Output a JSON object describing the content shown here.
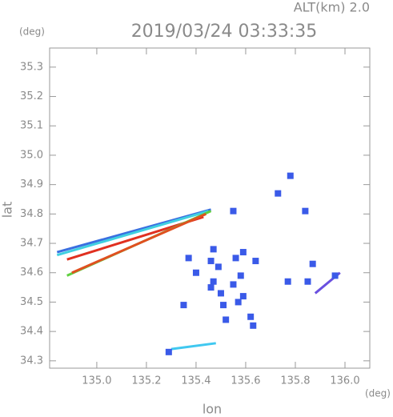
{
  "chart_data": {
    "type": "scatter",
    "title": "2019/03/24 03:33:35",
    "subtitle": "ALT(km) 2.0",
    "y_unit": "(deg)",
    "x_unit": "(deg)",
    "x_label": "lon",
    "y_label": "lat",
    "xlim": [
      134.81,
      136.1
    ],
    "ylim": [
      34.275,
      35.365
    ],
    "xticks": [
      {
        "value": 135,
        "label": "135.0"
      },
      135.2,
      135.4,
      135.6,
      135.8,
      {
        "value": 136,
        "label": "136.0"
      }
    ],
    "yticks": [
      34.3,
      34.4,
      34.5,
      34.6,
      34.7,
      34.8,
      34.9,
      {
        "value": 35,
        "label": "35.0"
      },
      35.1,
      35.2,
      35.3
    ],
    "series": [
      {
        "color": "#3a6fe0",
        "line": true,
        "x": [
          134.84,
          135.46
        ],
        "values": [
          34.67,
          34.815
        ]
      },
      {
        "color": "#40d0e0",
        "line": true,
        "x": [
          134.84,
          135.45
        ],
        "values": [
          34.66,
          34.81
        ]
      },
      {
        "color": "#e03020",
        "line": true,
        "x": [
          134.88,
          135.43
        ],
        "values": [
          34.645,
          34.79
        ]
      },
      {
        "color": "#60d040",
        "line": true,
        "x": [
          134.88,
          135.46
        ],
        "values": [
          34.59,
          34.81
        ]
      },
      {
        "color": "#e05020",
        "line": true,
        "x": [
          134.9,
          135.44
        ],
        "values": [
          34.6,
          34.8
        ]
      },
      {
        "color": "#40c8f0",
        "line": true,
        "x": [
          135.3,
          135.48
        ],
        "values": [
          34.34,
          34.36
        ]
      },
      {
        "color": "#6a50e0",
        "line": true,
        "x": [
          135.88,
          135.98
        ],
        "values": [
          34.53,
          34.6
        ]
      },
      {
        "color": "#3a5ae8",
        "line": false,
        "x": [
          135.37,
          135.46,
          135.49,
          135.56,
          135.47,
          135.5,
          135.51,
          135.55,
          135.58,
          135.59,
          135.52,
          135.62,
          135.63,
          135.57,
          135.46,
          135.73,
          135.78,
          135.84,
          135.55,
          135.87,
          135.96,
          135.77,
          135.85,
          135.35,
          135.64,
          135.59,
          135.47,
          135.4,
          135.29
        ],
        "values": [
          34.65,
          34.64,
          34.62,
          34.65,
          34.57,
          34.53,
          34.49,
          34.56,
          34.59,
          34.52,
          34.44,
          34.45,
          34.42,
          34.5,
          34.55,
          34.87,
          34.93,
          34.81,
          34.81,
          34.63,
          34.59,
          34.57,
          34.57,
          34.49,
          34.64,
          34.67,
          34.68,
          34.6,
          34.33
        ]
      }
    ]
  }
}
